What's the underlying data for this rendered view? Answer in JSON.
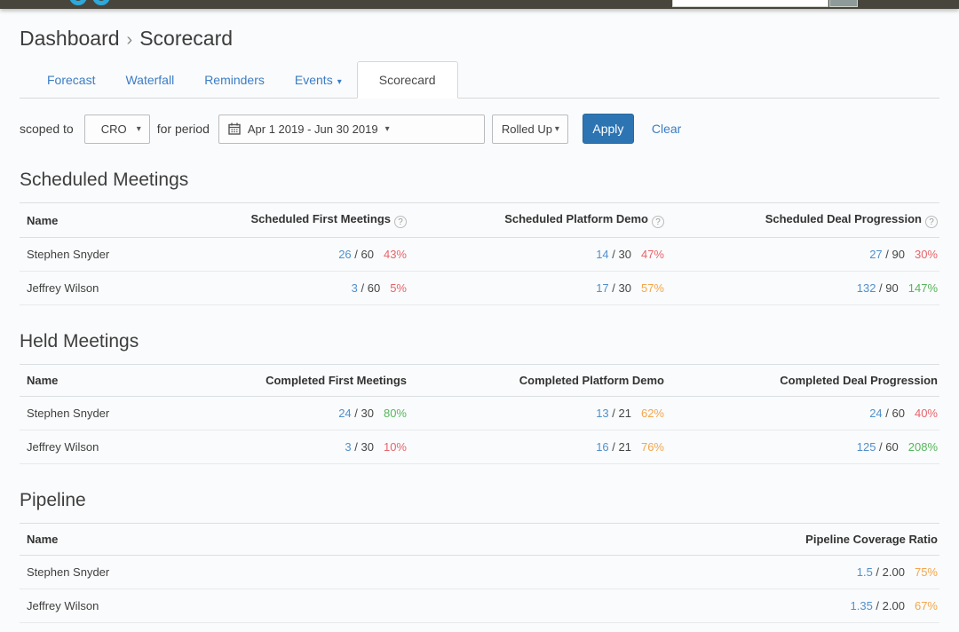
{
  "topbar": {
    "search_value": "",
    "search_placeholder": ""
  },
  "breadcrumb": {
    "parent": "Dashboard",
    "separator": "›",
    "current": "Scorecard"
  },
  "tabs": [
    {
      "label": "Forecast",
      "active": false,
      "has_caret": false
    },
    {
      "label": "Waterfall",
      "active": false,
      "has_caret": false
    },
    {
      "label": "Reminders",
      "active": false,
      "has_caret": false
    },
    {
      "label": "Events",
      "active": false,
      "has_caret": true
    },
    {
      "label": "Scorecard",
      "active": true,
      "has_caret": false
    }
  ],
  "filters": {
    "scoped_to_label": "scoped to",
    "scope_value": "CRO",
    "for_period_label": "for period",
    "period_value": "Apr 1 2019 - Jun 30 2019",
    "rollup_value": "Rolled Up",
    "apply_label": "Apply",
    "clear_label": "Clear"
  },
  "colors": {
    "accent_blue": "#3c7dc4",
    "value_blue": "#5190cc",
    "red": "#e8646a",
    "orange": "#f3a64c",
    "green": "#56b65c",
    "apply_bg": "#2d74b3",
    "topbar_bg": "#48453d",
    "logo_cyan": "#2da9dc"
  },
  "sections": [
    {
      "title": "Scheduled Meetings",
      "name_header": "Name",
      "columns": [
        {
          "label": "Scheduled First Meetings",
          "help": true
        },
        {
          "label": "Scheduled Platform Demo",
          "help": true
        },
        {
          "label": "Scheduled Deal Progression",
          "help": true
        }
      ],
      "rows": [
        {
          "name": "Stephen Snyder",
          "cells": [
            {
              "num": "26",
              "den": "60",
              "pct": "43%",
              "status": "red"
            },
            {
              "num": "14",
              "den": "30",
              "pct": "47%",
              "status": "red"
            },
            {
              "num": "27",
              "den": "90",
              "pct": "30%",
              "status": "red"
            }
          ]
        },
        {
          "name": "Jeffrey Wilson",
          "cells": [
            {
              "num": "3",
              "den": "60",
              "pct": "5%",
              "status": "red"
            },
            {
              "num": "17",
              "den": "30",
              "pct": "57%",
              "status": "orange"
            },
            {
              "num": "132",
              "den": "90",
              "pct": "147%",
              "status": "green"
            }
          ]
        }
      ]
    },
    {
      "title": "Held Meetings",
      "name_header": "Name",
      "columns": [
        {
          "label": "Completed First Meetings",
          "help": false
        },
        {
          "label": "Completed Platform Demo",
          "help": false
        },
        {
          "label": "Completed Deal Progression",
          "help": false
        }
      ],
      "rows": [
        {
          "name": "Stephen Snyder",
          "cells": [
            {
              "num": "24",
              "den": "30",
              "pct": "80%",
              "status": "green"
            },
            {
              "num": "13",
              "den": "21",
              "pct": "62%",
              "status": "orange"
            },
            {
              "num": "24",
              "den": "60",
              "pct": "40%",
              "status": "red"
            }
          ]
        },
        {
          "name": "Jeffrey Wilson",
          "cells": [
            {
              "num": "3",
              "den": "30",
              "pct": "10%",
              "status": "red"
            },
            {
              "num": "16",
              "den": "21",
              "pct": "76%",
              "status": "orange"
            },
            {
              "num": "125",
              "den": "60",
              "pct": "208%",
              "status": "green"
            }
          ]
        }
      ]
    },
    {
      "title": "Pipeline",
      "name_header": "Name",
      "columns": [
        {
          "label": "Pipeline Coverage Ratio",
          "help": false
        }
      ],
      "rows": [
        {
          "name": "Stephen Snyder",
          "cells": [
            {
              "num": "1.5",
              "den": "2.00",
              "pct": "75%",
              "status": "orange"
            }
          ]
        },
        {
          "name": "Jeffrey Wilson",
          "cells": [
            {
              "num": "1.35",
              "den": "2.00",
              "pct": "67%",
              "status": "orange"
            }
          ]
        }
      ]
    }
  ]
}
